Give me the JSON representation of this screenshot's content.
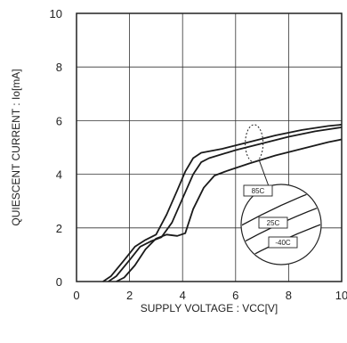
{
  "chart_data": {
    "type": "line",
    "xlabel": "SUPPLY VOLTAGE : VCC[V]",
    "ylabel": "QUIESCENT CURRENT : Io[mA]",
    "xlim": [
      0,
      10
    ],
    "ylim": [
      0,
      10
    ],
    "x_ticks": [
      "0",
      "2",
      "4",
      "6",
      "8",
      "10"
    ],
    "y_ticks": [
      "0",
      "2",
      "4",
      "6",
      "8",
      "10"
    ],
    "grid": true,
    "series": [
      {
        "name": "85C",
        "points": [
          [
            1.0,
            0
          ],
          [
            1.3,
            0.2
          ],
          [
            1.8,
            0.8
          ],
          [
            2.2,
            1.3
          ],
          [
            2.6,
            1.55
          ],
          [
            3.0,
            1.75
          ],
          [
            3.4,
            2.5
          ],
          [
            3.8,
            3.4
          ],
          [
            4.1,
            4.1
          ],
          [
            4.4,
            4.6
          ],
          [
            4.7,
            4.8
          ],
          [
            5.5,
            4.95
          ],
          [
            6.5,
            5.2
          ],
          [
            7.5,
            5.45
          ],
          [
            8.5,
            5.65
          ],
          [
            9.5,
            5.8
          ],
          [
            10,
            5.85
          ]
        ]
      },
      {
        "name": "25C",
        "points": [
          [
            1.2,
            0
          ],
          [
            1.5,
            0.2
          ],
          [
            2.0,
            0.8
          ],
          [
            2.4,
            1.3
          ],
          [
            2.8,
            1.5
          ],
          [
            3.2,
            1.65
          ],
          [
            3.6,
            2.2
          ],
          [
            4.0,
            3.1
          ],
          [
            4.4,
            4.0
          ],
          [
            4.7,
            4.45
          ],
          [
            5.0,
            4.6
          ],
          [
            6.0,
            4.9
          ],
          [
            7.0,
            5.15
          ],
          [
            8.0,
            5.4
          ],
          [
            9.0,
            5.6
          ],
          [
            10,
            5.75
          ]
        ]
      },
      {
        "name": "-40C",
        "points": [
          [
            1.5,
            0
          ],
          [
            1.8,
            0.15
          ],
          [
            2.2,
            0.6
          ],
          [
            2.6,
            1.2
          ],
          [
            3.0,
            1.6
          ],
          [
            3.4,
            1.75
          ],
          [
            3.8,
            1.7
          ],
          [
            4.1,
            1.8
          ],
          [
            4.4,
            2.7
          ],
          [
            4.8,
            3.5
          ],
          [
            5.2,
            3.95
          ],
          [
            5.6,
            4.1
          ],
          [
            6.5,
            4.4
          ],
          [
            7.5,
            4.7
          ],
          [
            8.5,
            4.95
          ],
          [
            9.5,
            5.2
          ],
          [
            10,
            5.3
          ]
        ]
      }
    ],
    "callout": {
      "at_x": 6.7,
      "labels": [
        "85C",
        "25C",
        "-40C"
      ]
    }
  }
}
